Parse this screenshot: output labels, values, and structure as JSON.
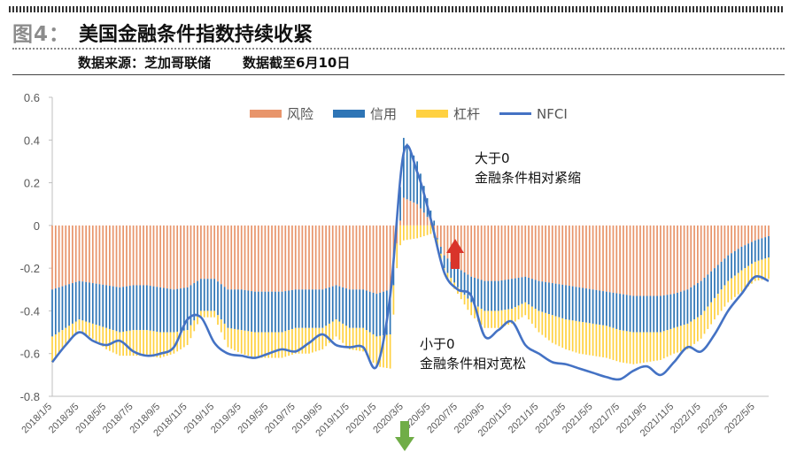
{
  "figure": {
    "number": "图4：",
    "title": "美国金融条件指数持续收紧",
    "source": "数据来源：芝加哥联储",
    "date_note": "数据截至6月10日"
  },
  "annotations": {
    "tighten_line1": "大于0",
    "tighten_line2": "金融条件相对紧缩",
    "loosen_line1": "小于0",
    "loosen_line2": "金融条件相对宽松",
    "up_arrow_color": "#d9342b",
    "down_arrow_color": "#70ad47"
  },
  "chart_data": {
    "type": "bar",
    "stacked": true,
    "title": "",
    "xlabel": "",
    "ylabel": "",
    "ylim": [
      -0.8,
      0.6
    ],
    "yticks": [
      "0.6",
      "0.4",
      "0.2",
      "0",
      "-0.2",
      "-0.4",
      "-0.6",
      "-0.8"
    ],
    "grid": false,
    "legend_position": "top-center",
    "xtick_labels": [
      "2018/1/5",
      "2018/3/5",
      "2018/5/5",
      "2018/7/5",
      "2018/9/5",
      "2018/11/5",
      "2019/1/5",
      "2019/3/5",
      "2019/5/5",
      "2019/7/5",
      "2019/9/5",
      "2019/11/5",
      "2020/1/5",
      "2020/3/5",
      "2020/5/5",
      "2020/7/5",
      "2020/9/5",
      "2020/11/5",
      "2021/1/5",
      "2021/3/5",
      "2021/5/5",
      "2021/7/5",
      "2021/9/5",
      "2021/11/5",
      "2022/1/5",
      "2022/3/5",
      "2022/5/5"
    ],
    "x": [
      "2018/1",
      "2018/2",
      "2018/3",
      "2018/4",
      "2018/5",
      "2018/6",
      "2018/7",
      "2018/8",
      "2018/9",
      "2018/10",
      "2018/11",
      "2018/12",
      "2019/1",
      "2019/2",
      "2019/3",
      "2019/4",
      "2019/5",
      "2019/6",
      "2019/7",
      "2019/8",
      "2019/9",
      "2019/10",
      "2019/11",
      "2019/12",
      "2020/1",
      "2020/2",
      "2020/3",
      "2020/4",
      "2020/5",
      "2020/6",
      "2020/7",
      "2020/8",
      "2020/9",
      "2020/10",
      "2020/11",
      "2020/12",
      "2021/1",
      "2021/2",
      "2021/3",
      "2021/4",
      "2021/5",
      "2021/6",
      "2021/7",
      "2021/8",
      "2021/9",
      "2021/10",
      "2021/11",
      "2021/12",
      "2022/1",
      "2022/2",
      "2022/3",
      "2022/4",
      "2022/5",
      "2022/6"
    ],
    "series": [
      {
        "name": "风险",
        "color": "#e8956b",
        "values": [
          -0.3,
          -0.28,
          -0.26,
          -0.27,
          -0.28,
          -0.29,
          -0.28,
          -0.28,
          -0.29,
          -0.3,
          -0.29,
          -0.25,
          -0.25,
          -0.3,
          -0.3,
          -0.31,
          -0.31,
          -0.31,
          -0.3,
          -0.3,
          -0.3,
          -0.28,
          -0.3,
          -0.3,
          -0.32,
          -0.3,
          0.13,
          0.1,
          0.02,
          -0.14,
          -0.2,
          -0.24,
          -0.26,
          -0.26,
          -0.25,
          -0.24,
          -0.26,
          -0.27,
          -0.28,
          -0.29,
          -0.3,
          -0.31,
          -0.32,
          -0.33,
          -0.33,
          -0.33,
          -0.32,
          -0.3,
          -0.26,
          -0.2,
          -0.14,
          -0.1,
          -0.07,
          -0.05
        ]
      },
      {
        "name": "信用",
        "color": "#2e75b6",
        "values": [
          -0.22,
          -0.2,
          -0.18,
          -0.19,
          -0.2,
          -0.21,
          -0.21,
          -0.21,
          -0.21,
          -0.2,
          -0.2,
          -0.15,
          -0.15,
          -0.18,
          -0.19,
          -0.19,
          -0.19,
          -0.19,
          -0.18,
          -0.18,
          -0.18,
          -0.16,
          -0.18,
          -0.18,
          -0.2,
          -0.21,
          0.28,
          0.2,
          0.05,
          -0.06,
          -0.09,
          -0.12,
          -0.14,
          -0.14,
          -0.14,
          -0.12,
          -0.14,
          -0.15,
          -0.16,
          -0.16,
          -0.16,
          -0.16,
          -0.17,
          -0.17,
          -0.17,
          -0.17,
          -0.16,
          -0.16,
          -0.16,
          -0.14,
          -0.12,
          -0.11,
          -0.1,
          -0.1
        ]
      },
      {
        "name": "杠杆",
        "color": "#ffd141",
        "values": [
          -0.12,
          -0.08,
          -0.05,
          -0.07,
          -0.1,
          -0.11,
          -0.12,
          -0.12,
          -0.12,
          -0.1,
          -0.07,
          -0.03,
          -0.03,
          -0.09,
          -0.11,
          -0.12,
          -0.12,
          -0.12,
          -0.12,
          -0.12,
          -0.1,
          -0.08,
          -0.1,
          -0.11,
          -0.14,
          -0.16,
          -0.07,
          -0.06,
          -0.04,
          -0.03,
          -0.03,
          -0.06,
          -0.08,
          -0.08,
          -0.07,
          -0.06,
          -0.1,
          -0.13,
          -0.14,
          -0.15,
          -0.15,
          -0.15,
          -0.15,
          -0.15,
          -0.14,
          -0.13,
          -0.12,
          -0.12,
          -0.11,
          -0.1,
          -0.1,
          -0.1,
          -0.09,
          -0.1
        ]
      }
    ],
    "line": {
      "name": "NFCI",
      "color": "#4472c4",
      "values": [
        -0.64,
        -0.56,
        -0.5,
        -0.54,
        -0.56,
        -0.54,
        -0.59,
        -0.61,
        -0.6,
        -0.57,
        -0.44,
        -0.43,
        -0.55,
        -0.6,
        -0.61,
        -0.62,
        -0.6,
        -0.58,
        -0.59,
        -0.55,
        -0.51,
        -0.56,
        -0.57,
        -0.57,
        -0.66,
        -0.33,
        0.34,
        0.25,
        0.03,
        -0.22,
        -0.3,
        -0.33,
        -0.52,
        -0.49,
        -0.45,
        -0.56,
        -0.6,
        -0.64,
        -0.65,
        -0.67,
        -0.69,
        -0.71,
        -0.72,
        -0.68,
        -0.66,
        -0.7,
        -0.64,
        -0.57,
        -0.59,
        -0.51,
        -0.4,
        -0.32,
        -0.24,
        -0.26
      ]
    }
  }
}
